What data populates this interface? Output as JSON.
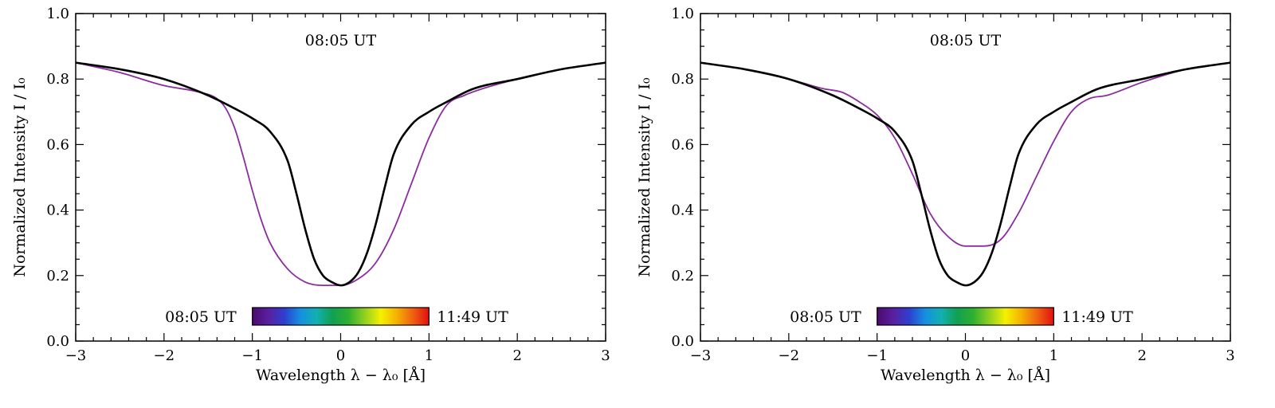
{
  "colors": {
    "reference_profile": "#000000",
    "observed_profile": "#8B2D9E",
    "colorbar_stops": [
      "#4B0B6B",
      "#5A1FA0",
      "#2E3FD0",
      "#1590E0",
      "#12B0B0",
      "#10A050",
      "#30B030",
      "#90D020",
      "#F5F000",
      "#F5B000",
      "#F06010",
      "#E01010"
    ]
  },
  "chart_data": [
    {
      "type": "line",
      "title": "",
      "annotation": "08:05 UT",
      "xlabel": "Wavelength  λ − λ₀  [Å]",
      "ylabel": "Normalized Intensity   I / I₀",
      "xlim": [
        -3,
        3
      ],
      "ylim": [
        0,
        1
      ],
      "xticks": [
        -3,
        -2,
        -1,
        0,
        1,
        2,
        3
      ],
      "xtick_labels": [
        "−3",
        "−2",
        "−1",
        "0",
        "1",
        "2",
        "3"
      ],
      "yticks": [
        0,
        0.2,
        0.4,
        0.6,
        0.8,
        1.0
      ],
      "ytick_labels": [
        "0.0",
        "0.2",
        "0.4",
        "0.6",
        "0.8",
        "1.0"
      ],
      "grid": false,
      "colorbar": {
        "label_left": "08:05 UT",
        "label_right": "11:49 UT"
      },
      "series": [
        {
          "role": "reference",
          "x": [
            -3.0,
            -2.5,
            -2.0,
            -1.5,
            -1.2,
            -1.0,
            -0.8,
            -0.6,
            -0.5,
            -0.4,
            -0.3,
            -0.2,
            -0.1,
            0.0,
            0.1,
            0.2,
            0.3,
            0.4,
            0.5,
            0.6,
            0.8,
            1.0,
            1.2,
            1.5,
            2.0,
            2.5,
            3.0
          ],
          "y": [
            0.85,
            0.83,
            0.8,
            0.75,
            0.71,
            0.68,
            0.64,
            0.55,
            0.45,
            0.34,
            0.25,
            0.2,
            0.18,
            0.17,
            0.18,
            0.21,
            0.27,
            0.36,
            0.47,
            0.57,
            0.66,
            0.7,
            0.73,
            0.77,
            0.8,
            0.83,
            0.85
          ]
        },
        {
          "role": "observed",
          "x": [
            -3.0,
            -2.5,
            -2.0,
            -1.6,
            -1.4,
            -1.3,
            -1.2,
            -1.1,
            -1.0,
            -0.9,
            -0.8,
            -0.6,
            -0.4,
            -0.2,
            0.0,
            0.2,
            0.4,
            0.6,
            0.8,
            1.0,
            1.2,
            1.4,
            1.6,
            2.0,
            2.5,
            3.0
          ],
          "y": [
            0.85,
            0.82,
            0.78,
            0.76,
            0.74,
            0.71,
            0.65,
            0.56,
            0.46,
            0.37,
            0.3,
            0.22,
            0.18,
            0.17,
            0.17,
            0.19,
            0.24,
            0.34,
            0.48,
            0.62,
            0.72,
            0.75,
            0.77,
            0.8,
            0.83,
            0.85
          ]
        }
      ]
    },
    {
      "type": "line",
      "title": "",
      "annotation": "08:05 UT",
      "xlabel": "Wavelength  λ − λ₀  [Å]",
      "ylabel": "Normalized Intensity   I / I₀",
      "xlim": [
        -3,
        3
      ],
      "ylim": [
        0,
        1
      ],
      "xticks": [
        -3,
        -2,
        -1,
        0,
        1,
        2,
        3
      ],
      "xtick_labels": [
        "−3",
        "−2",
        "−1",
        "0",
        "1",
        "2",
        "3"
      ],
      "yticks": [
        0,
        0.2,
        0.4,
        0.6,
        0.8,
        1.0
      ],
      "ytick_labels": [
        "0.0",
        "0.2",
        "0.4",
        "0.6",
        "0.8",
        "1.0"
      ],
      "grid": false,
      "colorbar": {
        "label_left": "08:05 UT",
        "label_right": "11:49 UT"
      },
      "series": [
        {
          "role": "reference",
          "x": [
            -3.0,
            -2.5,
            -2.0,
            -1.5,
            -1.2,
            -1.0,
            -0.8,
            -0.6,
            -0.5,
            -0.4,
            -0.3,
            -0.2,
            -0.1,
            0.0,
            0.1,
            0.2,
            0.3,
            0.4,
            0.5,
            0.6,
            0.8,
            1.0,
            1.2,
            1.5,
            2.0,
            2.5,
            3.0
          ],
          "y": [
            0.85,
            0.83,
            0.8,
            0.75,
            0.71,
            0.68,
            0.64,
            0.55,
            0.45,
            0.34,
            0.25,
            0.2,
            0.18,
            0.17,
            0.18,
            0.21,
            0.27,
            0.36,
            0.47,
            0.57,
            0.66,
            0.7,
            0.73,
            0.77,
            0.8,
            0.83,
            0.85
          ]
        },
        {
          "role": "observed",
          "x": [
            -3.0,
            -2.5,
            -2.0,
            -1.6,
            -1.4,
            -1.2,
            -1.0,
            -0.8,
            -0.6,
            -0.4,
            -0.2,
            0.0,
            0.2,
            0.4,
            0.6,
            0.8,
            1.0,
            1.2,
            1.4,
            1.6,
            2.0,
            2.5,
            3.0
          ],
          "y": [
            0.85,
            0.83,
            0.8,
            0.77,
            0.76,
            0.73,
            0.69,
            0.62,
            0.51,
            0.39,
            0.32,
            0.29,
            0.29,
            0.31,
            0.39,
            0.5,
            0.61,
            0.7,
            0.74,
            0.75,
            0.79,
            0.83,
            0.85
          ]
        }
      ]
    }
  ]
}
